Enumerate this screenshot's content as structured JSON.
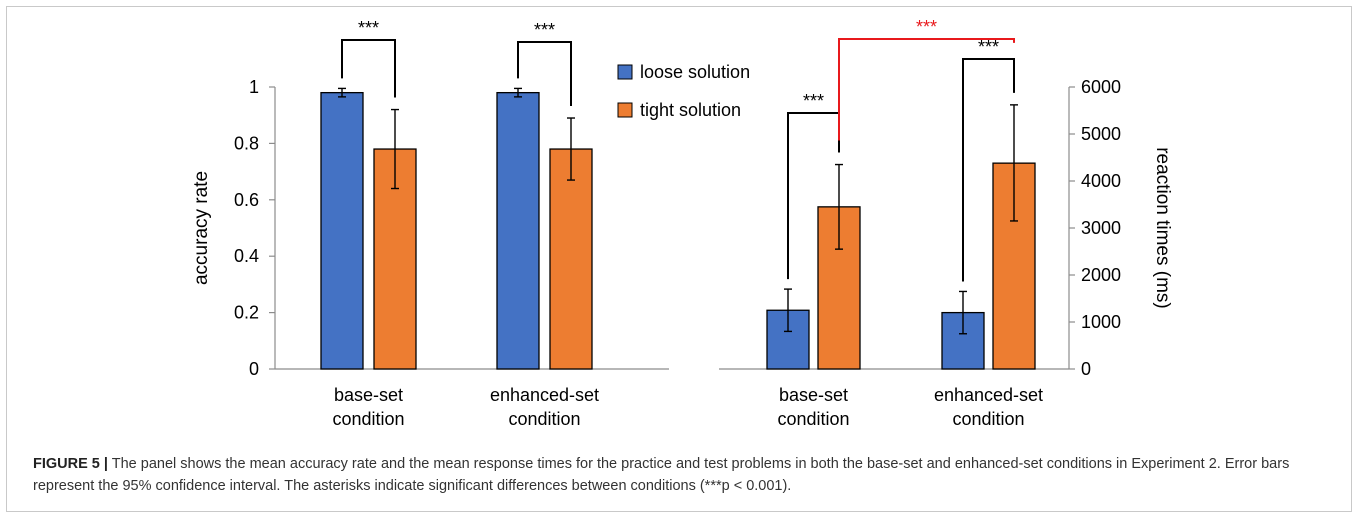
{
  "chart_data": [
    {
      "type": "bar",
      "ylabel": "accuracy rate",
      "ylim": [
        0,
        1
      ],
      "yticks": [
        "0",
        "0.2",
        "0.4",
        "0.6",
        "0.8",
        "1"
      ],
      "yticks_values": [
        0,
        0.2,
        0.4,
        0.6,
        0.8,
        1
      ],
      "categories": [
        "base-set condition",
        "enhanced-set condition"
      ],
      "category_lines": [
        [
          "base-set",
          "condition"
        ],
        [
          "enhanced-set",
          "condition"
        ]
      ],
      "series": [
        {
          "name": "loose solution",
          "values": [
            0.98,
            0.98
          ],
          "err_low": [
            0.965,
            0.965
          ],
          "err_high": [
            0.995,
            0.995
          ]
        },
        {
          "name": "tight solution",
          "values": [
            0.78,
            0.78
          ],
          "err_low": [
            0.64,
            0.67
          ],
          "err_high": [
            0.92,
            0.89
          ]
        }
      ],
      "significance": [
        {
          "label": "***",
          "color": "#000000"
        },
        {
          "label": "***",
          "color": "#000000"
        }
      ]
    },
    {
      "type": "bar",
      "ylabel": "reaction times (ms)",
      "ylim": [
        0,
        6000
      ],
      "yticks": [
        "0",
        "1000",
        "2000",
        "3000",
        "4000",
        "5000",
        "6000"
      ],
      "yticks_values": [
        0,
        1000,
        2000,
        3000,
        4000,
        5000,
        6000
      ],
      "categories": [
        "base-set condition",
        "enhanced-set condition"
      ],
      "category_lines": [
        [
          "base-set",
          "condition"
        ],
        [
          "enhanced-set",
          "condition"
        ]
      ],
      "series": [
        {
          "name": "loose solution",
          "values": [
            1250,
            1200
          ],
          "err_low": [
            800,
            750
          ],
          "err_high": [
            1700,
            1650
          ]
        },
        {
          "name": "tight solution",
          "values": [
            3450,
            4380
          ],
          "err_low": [
            2550,
            3150
          ],
          "err_high": [
            4350,
            5620
          ]
        }
      ],
      "significance": [
        {
          "label": "***",
          "color": "#000000"
        },
        {
          "label": "***",
          "color": "#000000"
        },
        {
          "label": "***",
          "color": "#e8191c"
        }
      ]
    }
  ],
  "legend": {
    "items": [
      {
        "name": "loose solution",
        "color": "#4472c4"
      },
      {
        "name": "tight solution",
        "color": "#ed7d31"
      }
    ]
  },
  "colors": {
    "loose": "#4472c4",
    "tight": "#ed7d31",
    "sig_red": "#e8191c"
  },
  "caption": {
    "label": "FIGURE 5 |",
    "text": "The panel shows the mean accuracy rate and the mean response times for the practice and test problems in both the base-set and enhanced-set conditions in Experiment 2. Error bars represent the 95% confidence interval. The asterisks indicate significant differences between conditions (***p < 0.001)."
  }
}
